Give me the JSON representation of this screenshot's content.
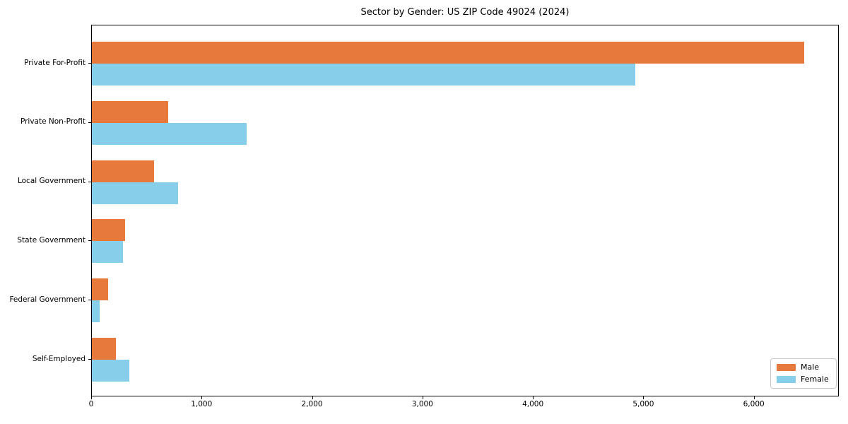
{
  "title": "Sector by Gender: US ZIP Code 49024 (2024)",
  "chart_data": {
    "type": "bar",
    "orientation": "horizontal",
    "title": "Sector by Gender: US ZIP Code 49024 (2024)",
    "categories": [
      "Private For-Profit",
      "Private Non-Profit",
      "Local Government",
      "State Government",
      "Federal Government",
      "Self-Employed"
    ],
    "series": [
      {
        "name": "Male",
        "color": "#e8793c",
        "values": [
          6450,
          690,
          565,
          300,
          150,
          215
        ]
      },
      {
        "name": "Female",
        "color": "#87ceeb",
        "values": [
          4920,
          1400,
          780,
          280,
          70,
          340
        ]
      }
    ],
    "xlabel": "",
    "ylabel": "",
    "xlim": [
      0,
      6770
    ],
    "xticks": [
      0,
      1000,
      2000,
      3000,
      4000,
      5000,
      6000
    ],
    "xtick_labels": [
      "0",
      "1,000",
      "2,000",
      "3,000",
      "4,000",
      "5,000",
      "6,000"
    ],
    "legend": {
      "position": "lower-right"
    },
    "grid": false,
    "background_color": "#ffffff",
    "spine_color": "#000000"
  }
}
